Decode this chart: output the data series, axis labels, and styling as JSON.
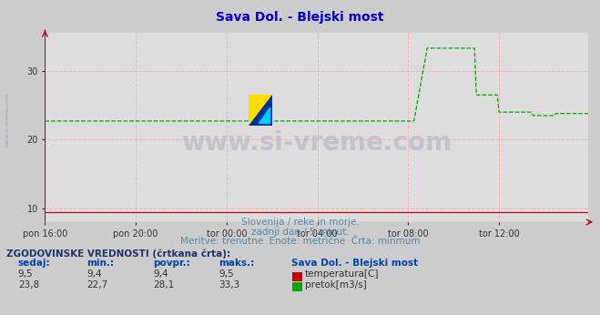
{
  "title": "Sava Dol. - Blejski most",
  "title_color": "#0000cc",
  "bg_color": "#cccccc",
  "plot_bg_color": "#dddddd",
  "grid_color": "#ffb0b0",
  "ylim": [
    8.0,
    35.5
  ],
  "yticks": [
    10,
    20,
    30
  ],
  "xlim": [
    0,
    287
  ],
  "x_tick_positions": [
    0,
    48,
    96,
    144,
    192,
    240
  ],
  "x_tick_labels": [
    "pon 16:00",
    "pon 20:00",
    "tor 00:00",
    "tor 04:00",
    "tor 08:00",
    "tor 12:00"
  ],
  "subtitle1": "Slovenija / reke in morje.",
  "subtitle2": "zadnji dan / 5 minut.",
  "subtitle3": "Meritve: trenutne  Enote: metrične  Črta: minmum",
  "subtitle_color": "#5588aa",
  "table_header": "ZGODOVINSKE VREDNOSTI (črtkana črta):",
  "col_headers": [
    "sedaj:",
    "min.:",
    "povpr.:",
    "maks.:"
  ],
  "row1_values": [
    "9,5",
    "9,4",
    "9,4",
    "9,5"
  ],
  "row1_label": "temperatura[C]",
  "row1_color": "#cc0000",
  "row2_values": [
    "23,8",
    "22,7",
    "28,1",
    "33,3"
  ],
  "row2_label": "pretok[m3/s]",
  "row2_color": "#00aa00",
  "station_name": "Sava Dol. - Blejski most",
  "temp_value": 9.5,
  "temp_min": 9.4,
  "flow_base": 22.7,
  "n_points": 288,
  "flow_spike_start": 195,
  "flow_spike_peak_start": 203,
  "flow_spike_peak_end": 228,
  "flow_drop1_end": 240,
  "flow_drop2_end": 258,
  "flow_drop3_end": 270,
  "flow_level_peak": 33.3,
  "flow_level_drop1": 26.5,
  "flow_level_drop2": 24.0,
  "flow_level_drop3": 23.5,
  "flow_level_end": 23.8,
  "watermark_text": "www.si-vreme.com",
  "watermark_color": "#bbbbcc"
}
